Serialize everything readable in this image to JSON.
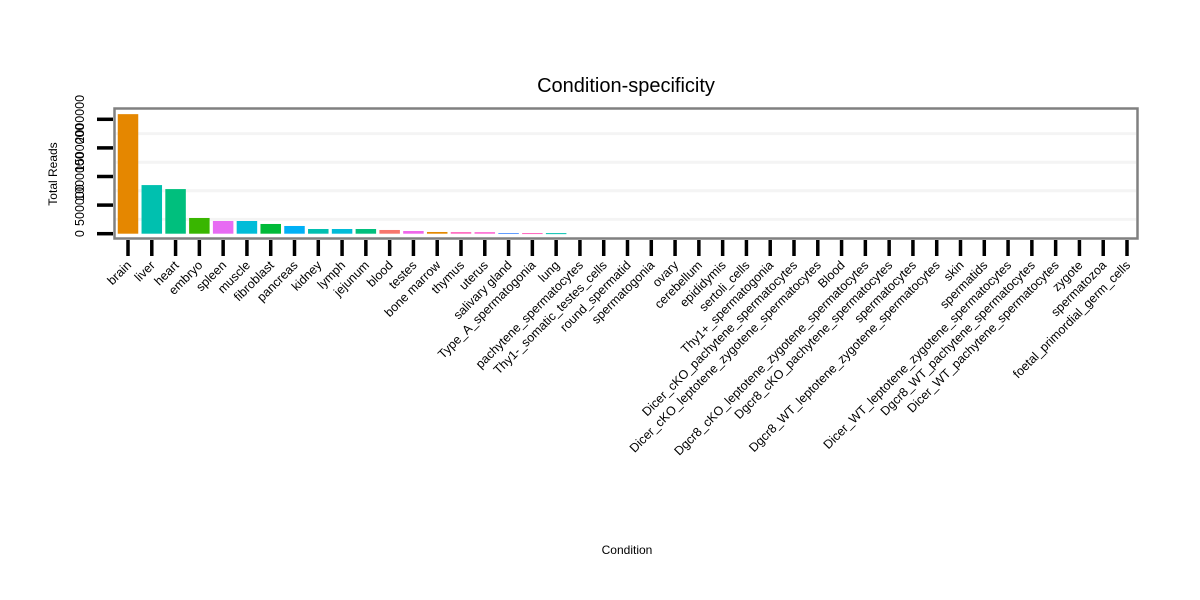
{
  "chart_data": {
    "type": "bar",
    "title": "Condition-specificity",
    "xlabel": "Condition",
    "ylabel": "Total Reads",
    "ylim": [
      0,
      2100000
    ],
    "yticks": [
      0,
      500000,
      1000000,
      1500000,
      2000000
    ],
    "ytick_labels": [
      "0",
      "500000",
      "1000000",
      "1500000",
      "2000000"
    ],
    "grid": true,
    "legend": "none",
    "categories": [
      "brain",
      "liver",
      "heart",
      "embryo",
      "spleen",
      "muscle",
      "fibroblast",
      "pancreas",
      "kidney",
      "lymph",
      "jejunum",
      "blood",
      "testes",
      "bone marrow",
      "thymus",
      "uterus",
      "salivary gland",
      "Type_A_spermatogonia",
      "lung",
      "pachytene_spermatocytes",
      "Thy1-_somatic_testes_cells",
      "round_spermatid",
      "spermatogonia",
      "ovary",
      "cerebellum",
      "epididymis",
      "sertoli_cells",
      "Thy1+_spermatogonia",
      "Dicer_cKO_pachytene_spermatocytes",
      "Dicer_cKO_leptotene_zygotene_spermatocytes",
      "Blood",
      "Dgcr8_cKO_leptotene_zygotene_spermatocytes",
      "Dgcr8_cKO_pachytene_spermatocytes",
      "spermatocytes",
      "Dgcr8_WT_leptotene_zygotene_spermatocytes",
      "skin",
      "spermatids",
      "Dicer_WT_leptotene_zygotene_spermatocytes",
      "Dgcr8_WT_pachytene_spermatocytes",
      "Dicer_WT_pachytene_spermatocytes",
      "zygote",
      "spermatozoa",
      "foetal_primordial_germ_cells"
    ],
    "values": [
      2090000,
      850000,
      780000,
      275000,
      222000,
      222000,
      170000,
      135000,
      82000,
      82000,
      82000,
      65000,
      47000,
      30000,
      28000,
      27000,
      12000,
      11000,
      10000,
      0,
      0,
      0,
      0,
      0,
      0,
      0,
      0,
      0,
      0,
      0,
      0,
      0,
      0,
      0,
      0,
      0,
      0,
      0,
      0,
      0,
      0,
      0,
      0
    ],
    "colors": [
      "#E58700",
      "#00C0AF",
      "#00BF7D",
      "#39B600",
      "#E76BF3",
      "#00BCD8",
      "#00BA38",
      "#00B0F6",
      "#00BFB0",
      "#00BCD8",
      "#00BF7D",
      "#F8766D",
      "#EF67EB",
      "#E38900",
      "#FF62BC",
      "#FD61D1",
      "#619CFF",
      "#FF62BC",
      "#00C0AF",
      "#999999",
      "#999999",
      "#999999",
      "#999999",
      "#999999",
      "#999999",
      "#999999",
      "#999999",
      "#999999",
      "#999999",
      "#999999",
      "#999999",
      "#999999",
      "#999999",
      "#999999",
      "#999999",
      "#999999",
      "#999999",
      "#999999",
      "#999999",
      "#999999",
      "#999999",
      "#999999",
      "#999999"
    ]
  }
}
